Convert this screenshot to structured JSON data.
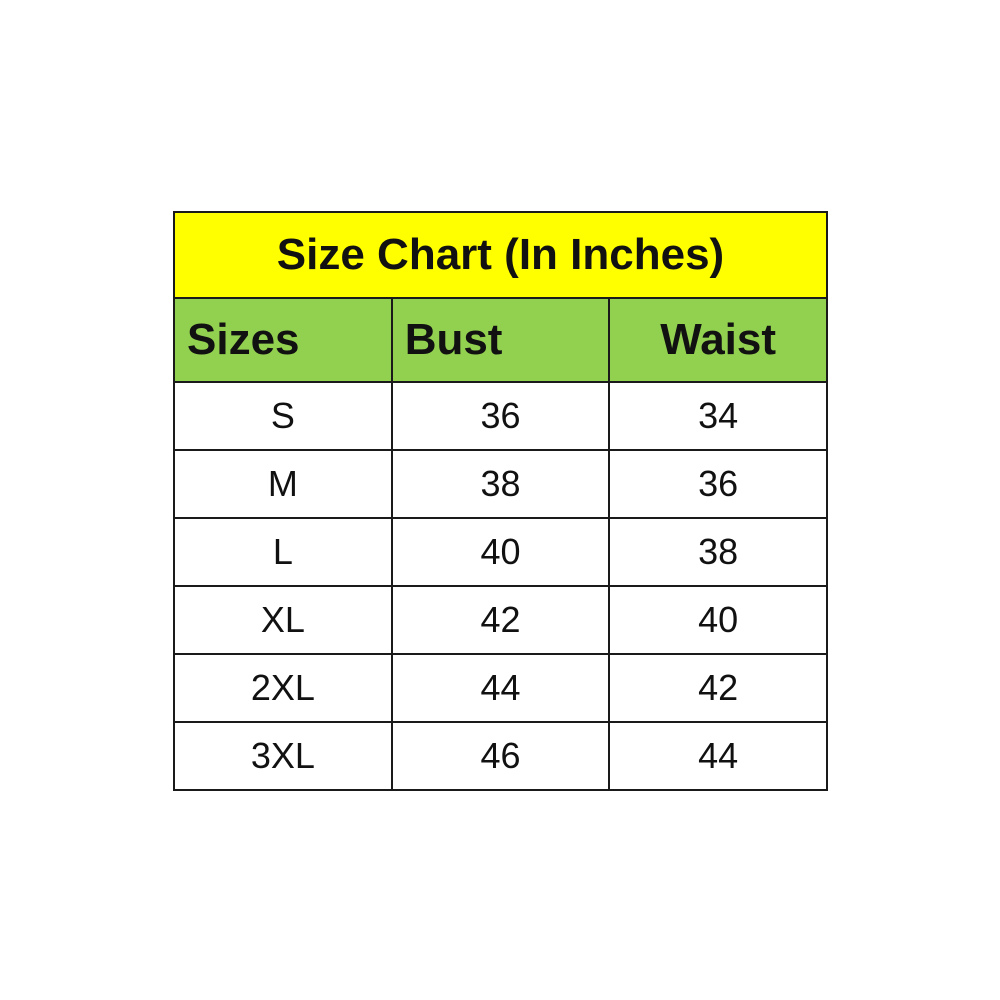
{
  "chart_data": {
    "type": "table",
    "title": "Size Chart (In Inches)",
    "columns": [
      "Sizes",
      "Bust",
      "Waist"
    ],
    "rows": [
      [
        "S",
        "36",
        "34"
      ],
      [
        "M",
        "38",
        "36"
      ],
      [
        "L",
        "40",
        "38"
      ],
      [
        "XL",
        "42",
        "40"
      ],
      [
        "2XL",
        "44",
        "42"
      ],
      [
        "3XL",
        "46",
        "44"
      ]
    ],
    "colors": {
      "title_bg": "#FFFF00",
      "header_bg": "#92D050",
      "border": "#1a1a1a"
    }
  }
}
